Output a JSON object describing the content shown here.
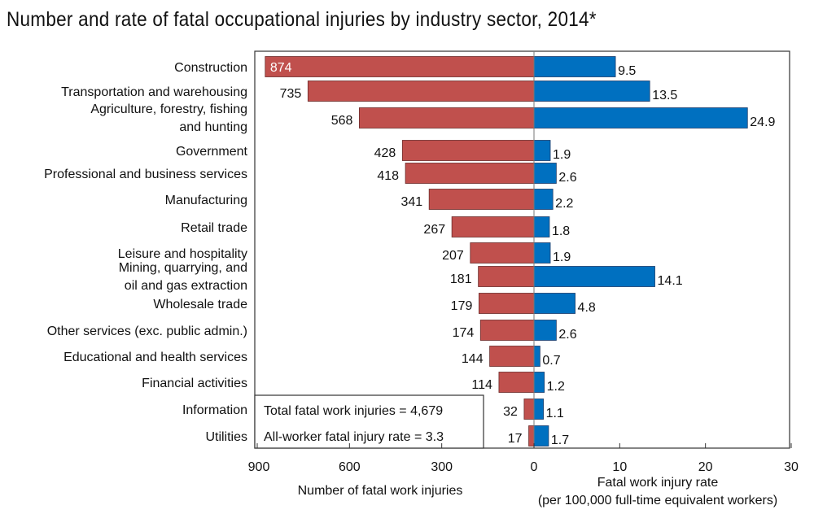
{
  "chart_data": {
    "type": "bar",
    "title": "Number and rate of fatal occupational injuries by industry sector, 2014*",
    "categories": [
      [
        "Construction"
      ],
      [
        "Transportation and warehousing"
      ],
      [
        "Agriculture, forestry, fishing",
        "and hunting"
      ],
      [
        "Government"
      ],
      [
        "Professional and business services"
      ],
      [
        "Manufacturing"
      ],
      [
        "Retail trade"
      ],
      [
        "Leisure and hospitality"
      ],
      [
        "Mining, quarrying, and",
        "oil and gas extraction"
      ],
      [
        "Wholesale trade"
      ],
      [
        "Other services (exc. public admin.)"
      ],
      [
        "Educational and health services"
      ],
      [
        "Financial activities"
      ],
      [
        "Information"
      ],
      [
        "Utilities"
      ]
    ],
    "series": [
      {
        "values": [
          874,
          735,
          568,
          428,
          418,
          341,
          267,
          207,
          181,
          179,
          174,
          144,
          114,
          32,
          17
        ],
        "labels": [
          "874",
          "735",
          "568",
          "428",
          "418",
          "341",
          "267",
          "207",
          "181",
          "179",
          "174",
          "144",
          "114",
          "32",
          "17"
        ],
        "color": "#c0504d"
      },
      {
        "values": [
          9.5,
          13.5,
          24.9,
          1.9,
          2.6,
          2.2,
          1.8,
          1.9,
          14.1,
          4.8,
          2.6,
          0.7,
          1.2,
          1.1,
          1.7
        ],
        "labels": [
          "9.5",
          "13.5",
          "24.9",
          "1.9",
          "2.6",
          "2.2",
          "1.8",
          "1.9",
          "14.1",
          "4.8",
          "2.6",
          "0.7",
          "1.2",
          "1.1",
          "1.7"
        ],
        "color": "#0070c0"
      }
    ],
    "left_axis": {
      "label": "Number of fatal work injuries",
      "range": [
        900,
        0
      ],
      "ticks": [
        "900",
        "600",
        "300",
        "0"
      ]
    },
    "right_axis": {
      "label": [
        "Fatal work injury rate",
        "(per 100,000 full-time equivalent workers)"
      ],
      "range": [
        0,
        30
      ],
      "ticks": [
        "10",
        "20",
        "30"
      ]
    },
    "annotations": [
      "Total fatal work injuries = 4,679",
      "All-worker fatal injury rate = 3.3"
    ],
    "grid": false
  }
}
